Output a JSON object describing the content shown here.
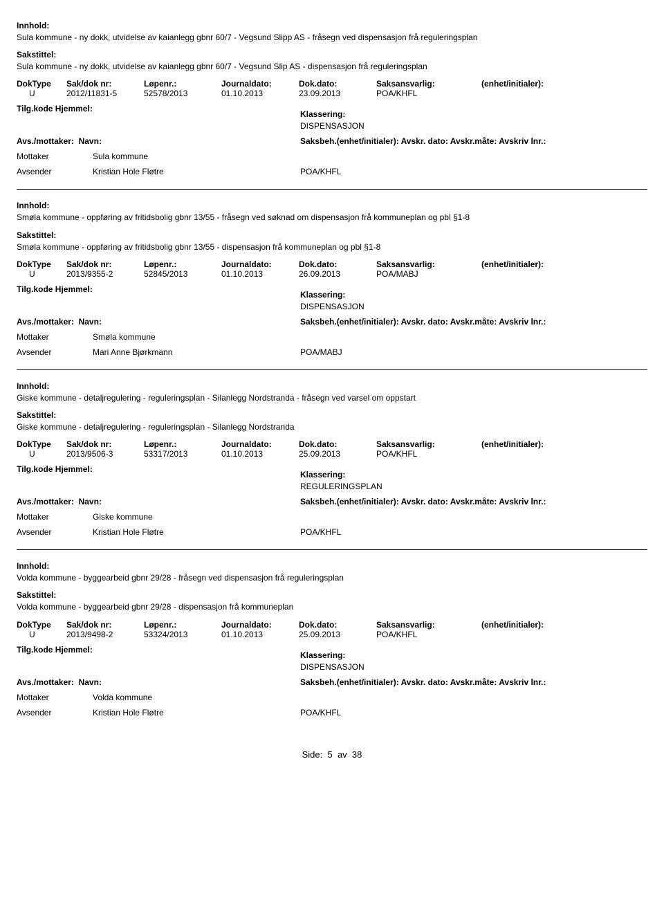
{
  "labels": {
    "innhold": "Innhold:",
    "sakstittel": "Sakstittel:",
    "tilgkode": "Tilg.kode",
    "hjemmel": "Hjemmel:",
    "klassering_trunc": "Klassering:",
    "avs_mottaker": "Avs./mottaker:",
    "navn": "Navn:",
    "saksbeh": "Saksbeh.(enhet/initialer): Avskr. dato:  Avskr.måte:  Avskriv lnr.:",
    "mottaker": "Mottaker",
    "avsender": "Avsender"
  },
  "meta_headers": [
    "DokType",
    "Sak/dok nr:",
    "Løpenr.:",
    "Journaldato:",
    "Dok.dato:",
    "Saksansvarlig:",
    "(enhet/initialer):"
  ],
  "records": [
    {
      "innhold": "Sula kommune - ny dokk, utvidelse av kaianlegg gbnr 60/7 - Vegsund Slipp AS - fråsegn ved dispensasjon frå reguleringsplan",
      "sakstittel": "Sula kommune - ny dokk, utvidelse av kaianlegg gbnr 60/7 - Vegsund Slip AS - dispensasjon frå reguleringsplan",
      "doktype": "U",
      "sakdok": "2012/11831-5",
      "lopenr": "52578/2013",
      "journaldato": "01.10.2013",
      "dokdato": "23.09.2013",
      "saksansvarlig": "POA/KHFL",
      "klassering": "DISPENSASJON",
      "mottaker": "Sula kommune",
      "avsender": "Kristian Hole Fløtre",
      "avsender_code": "POA/KHFL"
    },
    {
      "innhold": "Smøla kommune - oppføring av fritidsbolig gbnr 13/55 - fråsegn ved søknad om  dispensasjon frå kommuneplan og pbl §1-8",
      "sakstittel": "Smøla kommune - oppføring av fritidsbolig gbnr 13/55 - dispensasjon frå kommuneplan og pbl §1-8",
      "doktype": "U",
      "sakdok": "2013/9355-2",
      "lopenr": "52845/2013",
      "journaldato": "01.10.2013",
      "dokdato": "26.09.2013",
      "saksansvarlig": "POA/MABJ",
      "klassering": "DISPENSASJON",
      "mottaker": "Smøla kommune",
      "avsender": "Mari Anne Bjørkmann",
      "avsender_code": "POA/MABJ"
    },
    {
      "innhold": "Giske kommune - detaljregulering - reguleringsplan - Silanlegg Nordstranda - fråsegn ved varsel om oppstart",
      "sakstittel": "Giske kommune - detaljregulering - reguleringsplan - Silanlegg Nordstranda",
      "doktype": "U",
      "sakdok": "2013/9506-3",
      "lopenr": "53317/2013",
      "journaldato": "01.10.2013",
      "dokdato": "25.09.2013",
      "saksansvarlig": "POA/KHFL",
      "klassering": "REGULERINGSPLAN",
      "mottaker": "Giske kommune",
      "avsender": "Kristian Hole Fløtre",
      "avsender_code": "POA/KHFL"
    },
    {
      "innhold": "Volda kommune - byggearbeid gbnr 29/28 - fråsegn ved dispensasjon frå reguleringsplan",
      "sakstittel": "Volda kommune - byggearbeid gbnr 29/28 - dispensasjon frå kommuneplan",
      "doktype": "U",
      "sakdok": "2013/9498-2",
      "lopenr": "53324/2013",
      "journaldato": "01.10.2013",
      "dokdato": "25.09.2013",
      "saksansvarlig": "POA/KHFL",
      "klassering": "DISPENSASJON",
      "mottaker": "Volda kommune",
      "avsender": "Kristian Hole Fløtre",
      "avsender_code": "POA/KHFL"
    }
  ],
  "footer": {
    "side": "Side:",
    "page": "5",
    "av": "av",
    "total": "38"
  }
}
